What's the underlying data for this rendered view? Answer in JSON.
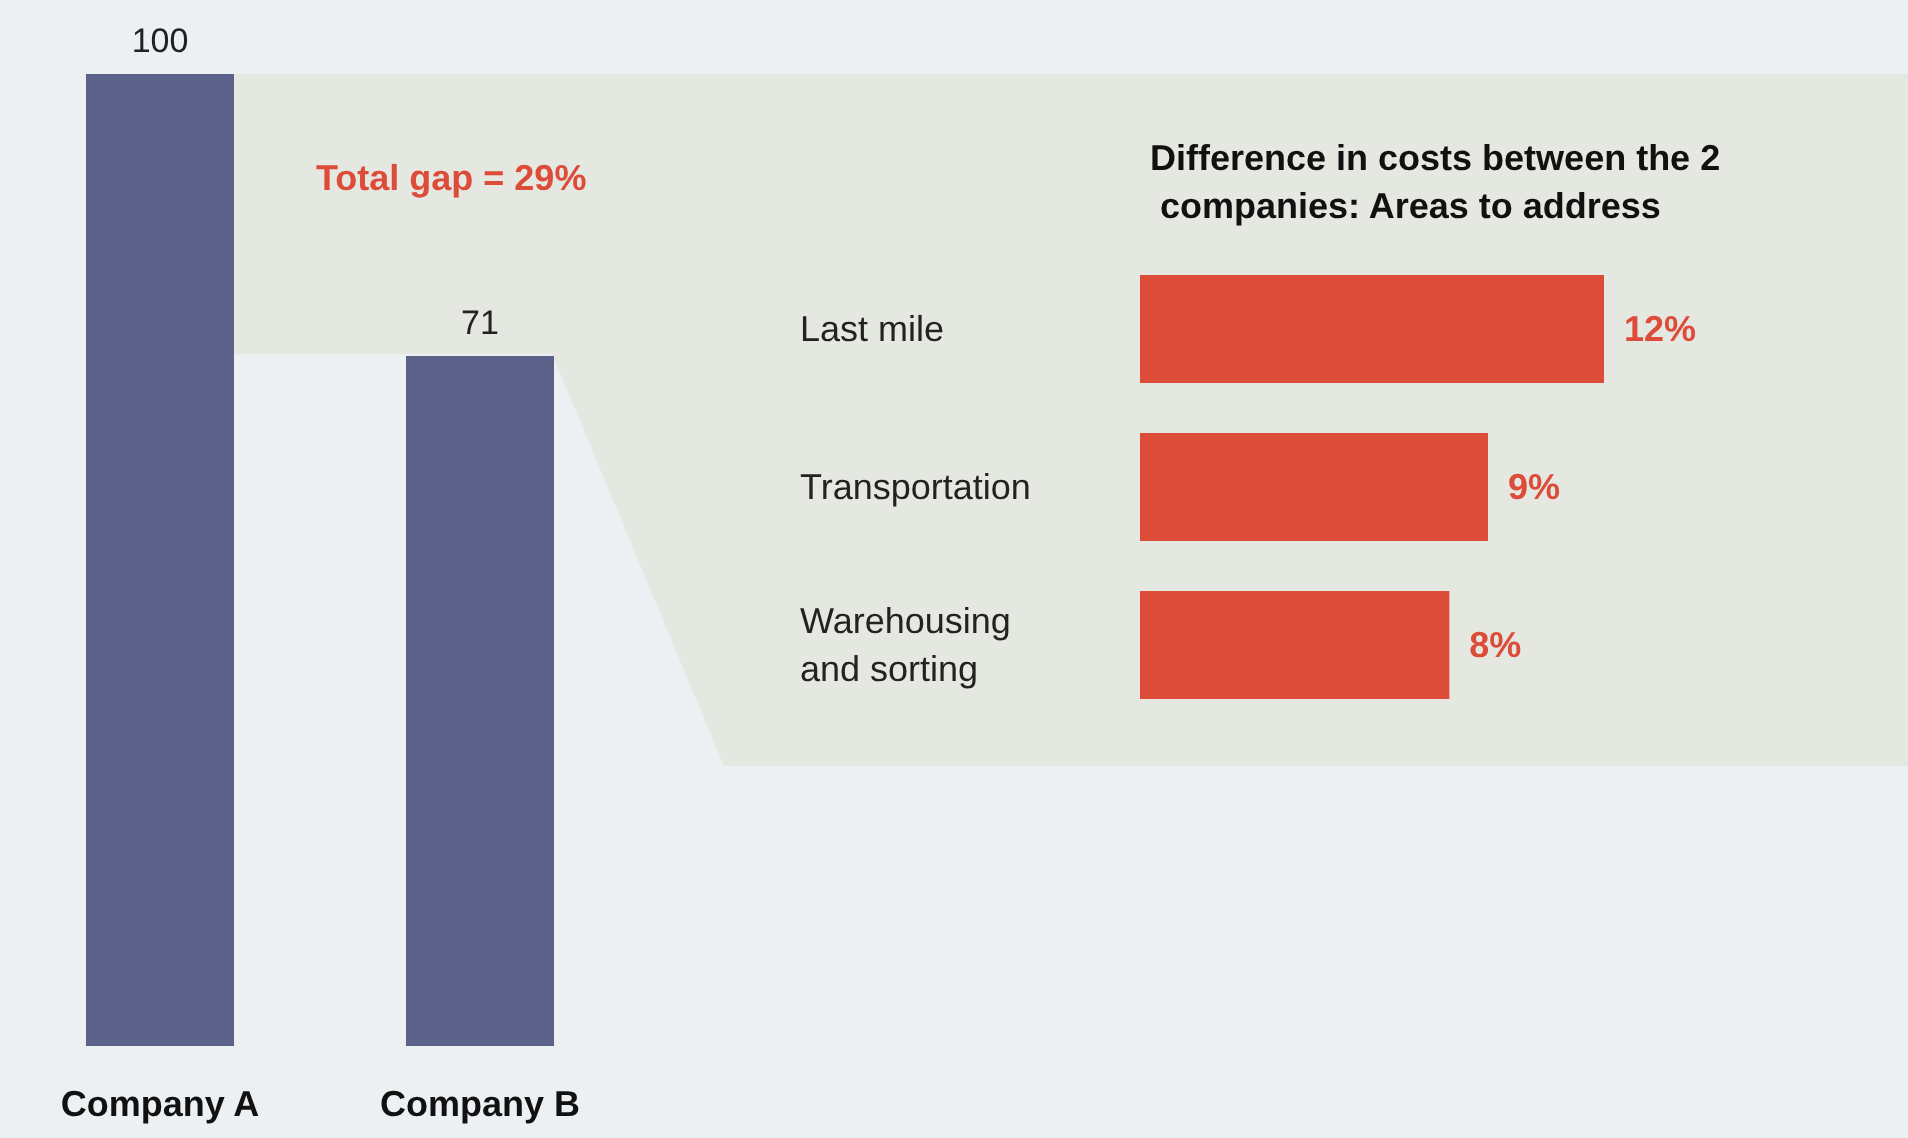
{
  "chart_data": [
    {
      "type": "bar",
      "categories": [
        "Company A",
        "Company B"
      ],
      "values": [
        100,
        71
      ],
      "color": "#5c6189",
      "data_labels": true,
      "annotations": [
        {
          "text": "Total gap = 29%"
        }
      ]
    },
    {
      "type": "bar",
      "orientation": "horizontal",
      "title": "Difference in costs between the 2 companies: Areas to address",
      "categories": [
        "Last mile",
        "Transportation",
        "Warehousing and sorting"
      ],
      "values": [
        12,
        9,
        8
      ],
      "value_labels": [
        "12%",
        "9%",
        "8%"
      ],
      "color": "#dd4b39"
    }
  ]
}
